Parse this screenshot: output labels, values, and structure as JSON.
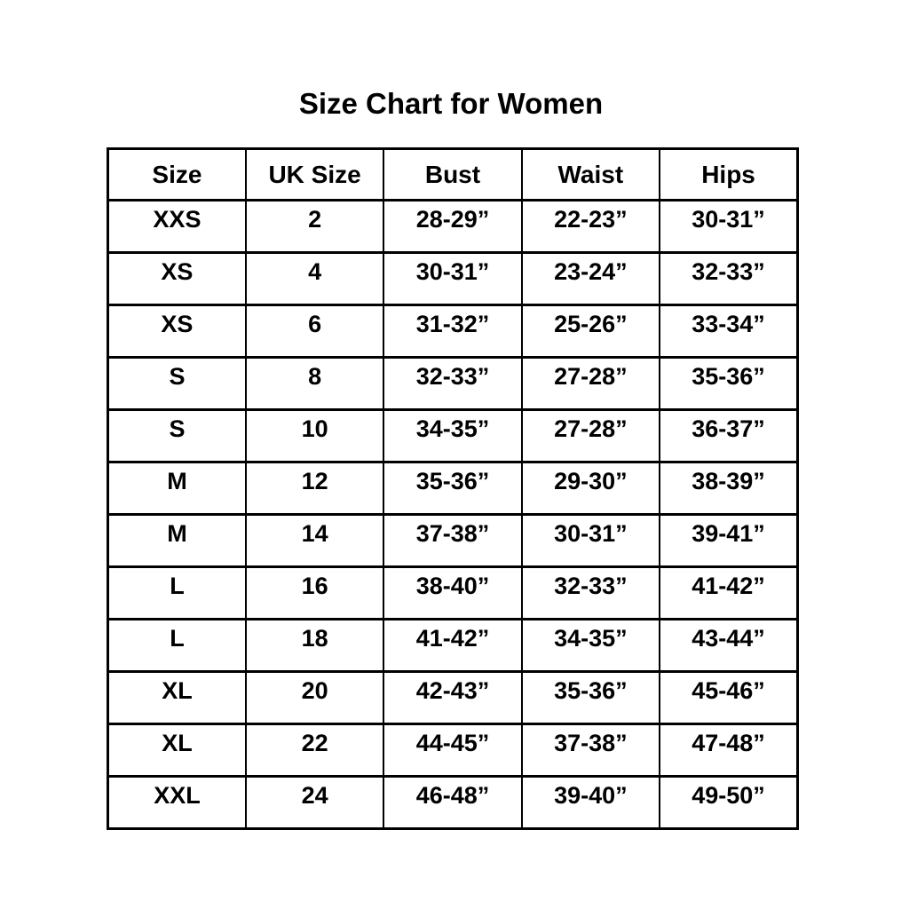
{
  "page": {
    "title": "Size Chart for Women"
  },
  "table": {
    "headers": [
      "Size",
      "UK Size",
      "Bust",
      "Waist",
      "Hips"
    ],
    "rows": [
      [
        "XXS",
        "2",
        "28-29”",
        "22-23”",
        "30-31”"
      ],
      [
        "XS",
        "4",
        "30-31”",
        "23-24”",
        "32-33”"
      ],
      [
        "XS",
        "6",
        "31-32”",
        "25-26”",
        "33-34”"
      ],
      [
        "S",
        "8",
        "32-33”",
        "27-28”",
        "35-36”"
      ],
      [
        "S",
        "10",
        "34-35”",
        "27-28”",
        "36-37”"
      ],
      [
        "M",
        "12",
        "35-36”",
        "29-30”",
        "38-39”"
      ],
      [
        "M",
        "14",
        "37-38”",
        "30-31”",
        "39-41”"
      ],
      [
        "L",
        "16",
        "38-40”",
        "32-33”",
        "41-42”"
      ],
      [
        "L",
        "18",
        "41-42”",
        "34-35”",
        "43-44”"
      ],
      [
        "XL",
        "20",
        "42-43”",
        "35-36”",
        "45-46”"
      ],
      [
        "XL",
        "22",
        "44-45”",
        "37-38”",
        "47-48”"
      ],
      [
        "XXL",
        "24",
        "46-48”",
        "39-40”",
        "49-50”"
      ]
    ]
  },
  "colors": {
    "text": "#000000",
    "border": "#000000",
    "background": "#ffffff"
  }
}
